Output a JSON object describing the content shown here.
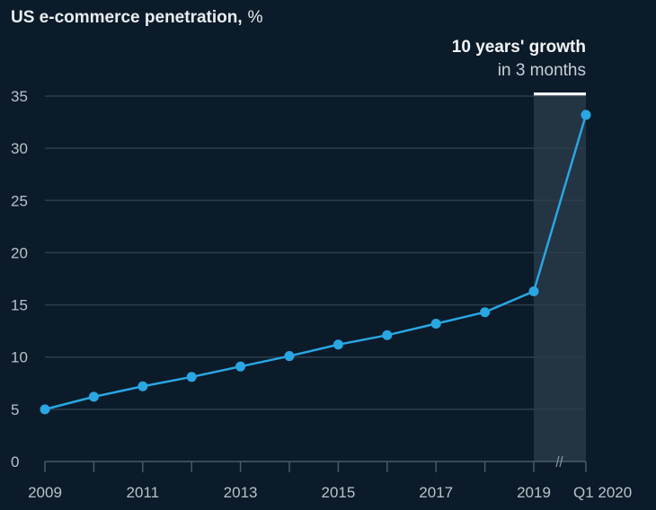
{
  "chart_data": {
    "type": "line",
    "title": "US e-commerce penetration,",
    "title_unit": "%",
    "annotation": {
      "headline": "10 years' growth",
      "subline": "in 3 months"
    },
    "x": [
      "2009",
      "2010",
      "2011",
      "2012",
      "2013",
      "2014",
      "2015",
      "2016",
      "2017",
      "2018",
      "2019",
      "Q1 2020"
    ],
    "x_tick_labels": [
      "2009",
      "2011",
      "2013",
      "2015",
      "2017",
      "2019",
      "Q1 2020"
    ],
    "series": [
      {
        "values": [
          5.0,
          6.2,
          7.2,
          8.1,
          9.1,
          10.1,
          11.2,
          12.1,
          13.2,
          14.3,
          16.3,
          33.2
        ]
      }
    ],
    "ylim": [
      0,
      35
    ],
    "y_ticks": [
      "0",
      "5",
      "10",
      "15",
      "20",
      "25",
      "30",
      "35"
    ],
    "xlabel": "",
    "ylabel": "",
    "grid": true,
    "highlight_range": [
      "2019",
      "Q1 2020"
    ],
    "axis_break": "between 2019 and Q1 2020",
    "colors": {
      "background": "#0b1b29",
      "line": "#2aa6e2",
      "highlight": "#233443",
      "grid": "#2c3d4b",
      "text": "#b9c2c9"
    }
  }
}
